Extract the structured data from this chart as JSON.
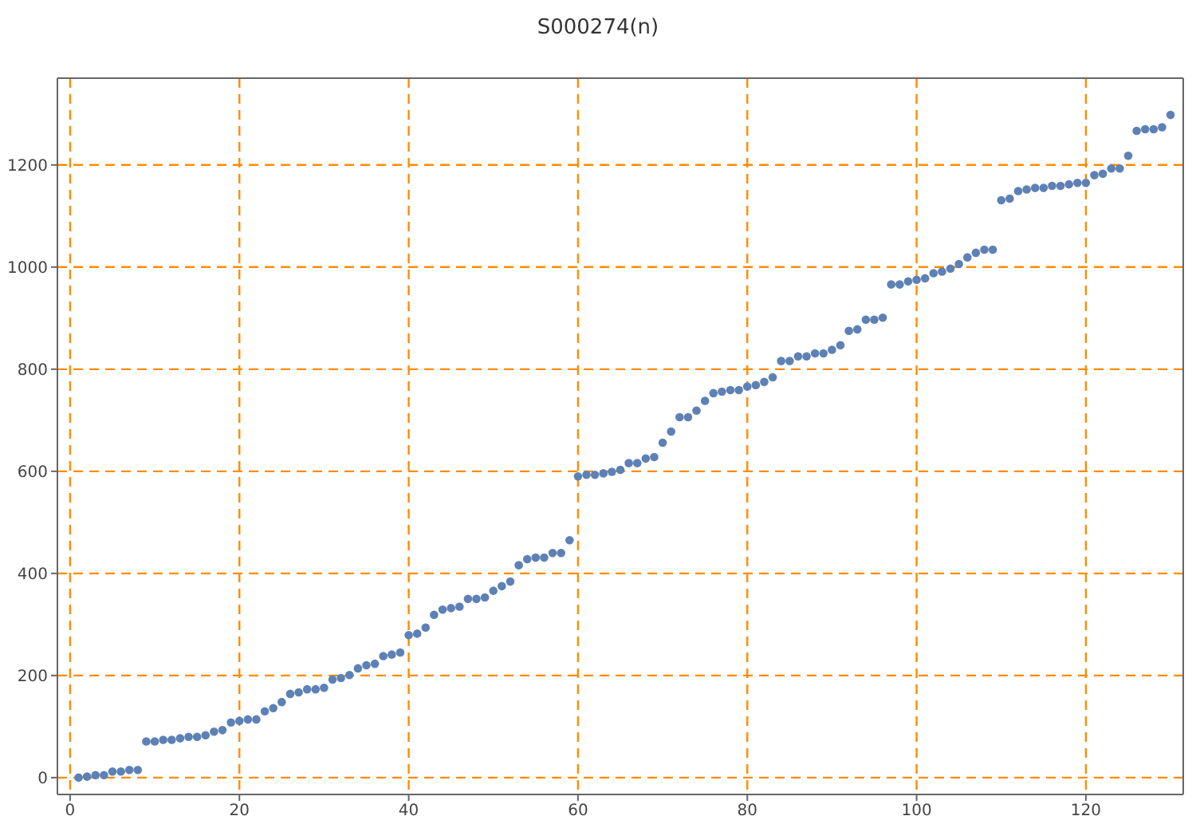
{
  "chart_data": {
    "type": "scatter",
    "title": "S000274(n)",
    "x": [
      1,
      2,
      3,
      4,
      5,
      6,
      7,
      8,
      9,
      10,
      11,
      12,
      13,
      14,
      15,
      16,
      17,
      18,
      19,
      20,
      21,
      22,
      23,
      24,
      25,
      26,
      27,
      28,
      29,
      30,
      31,
      32,
      33,
      34,
      35,
      36,
      37,
      38,
      39,
      40,
      41,
      42,
      43,
      44,
      45,
      46,
      47,
      48,
      49,
      50,
      51,
      52,
      53,
      54,
      55,
      56,
      57,
      58,
      59,
      60,
      61,
      62,
      63,
      64,
      65,
      66,
      67,
      68,
      69,
      70,
      71,
      72,
      73,
      74,
      75,
      76,
      77,
      78,
      79,
      80,
      81,
      82,
      83,
      84,
      85,
      86,
      87,
      88,
      89,
      90,
      91,
      92,
      93,
      94,
      95,
      96,
      97,
      98,
      99,
      100,
      101,
      102,
      103,
      104,
      105,
      106,
      107,
      108,
      109,
      110,
      111,
      112,
      113,
      114,
      115,
      116,
      117,
      118,
      119,
      120,
      121,
      122,
      123,
      124,
      125,
      126,
      127,
      128,
      129,
      130
    ],
    "series": [
      {
        "color": "#5e81b5",
        "values": [
          0,
          2,
          5,
          5,
          12,
          12,
          15,
          15,
          71,
          71,
          74,
          74,
          77,
          80,
          80,
          83,
          90,
          93,
          108,
          111,
          114,
          114,
          130,
          136,
          148,
          164,
          167,
          173,
          173,
          176,
          192,
          195,
          201,
          214,
          220,
          223,
          238,
          241,
          245,
          279,
          282,
          294,
          319,
          329,
          332,
          335,
          350,
          350,
          353,
          366,
          375,
          384,
          416,
          428,
          431,
          431,
          440,
          440,
          465,
          590,
          593,
          593,
          596,
          599,
          603,
          616,
          616,
          625,
          628,
          656,
          678,
          706,
          706,
          719,
          738,
          753,
          756,
          759,
          759,
          766,
          769,
          775,
          784,
          816,
          816,
          825,
          825,
          831,
          831,
          838,
          847,
          875,
          878,
          897,
          897,
          901,
          966,
          966,
          972,
          975,
          978,
          988,
          991,
          997,
          1006,
          1019,
          1028,
          1034,
          1034,
          1131,
          1134,
          1149,
          1152,
          1155,
          1155,
          1159,
          1159,
          1162,
          1165,
          1165,
          1180,
          1183,
          1193,
          1193,
          1218,
          1267,
          1270,
          1270,
          1274,
          1298
        ]
      }
    ],
    "xlim": [
      -1.5,
      131.5
    ],
    "xticks": [
      0,
      20,
      40,
      60,
      80,
      100,
      120
    ],
    "ylim": [
      -33,
      1370
    ],
    "yticks": [
      0,
      200,
      400,
      600,
      800,
      1000,
      1200
    ],
    "grid": true,
    "marker": "circle"
  }
}
